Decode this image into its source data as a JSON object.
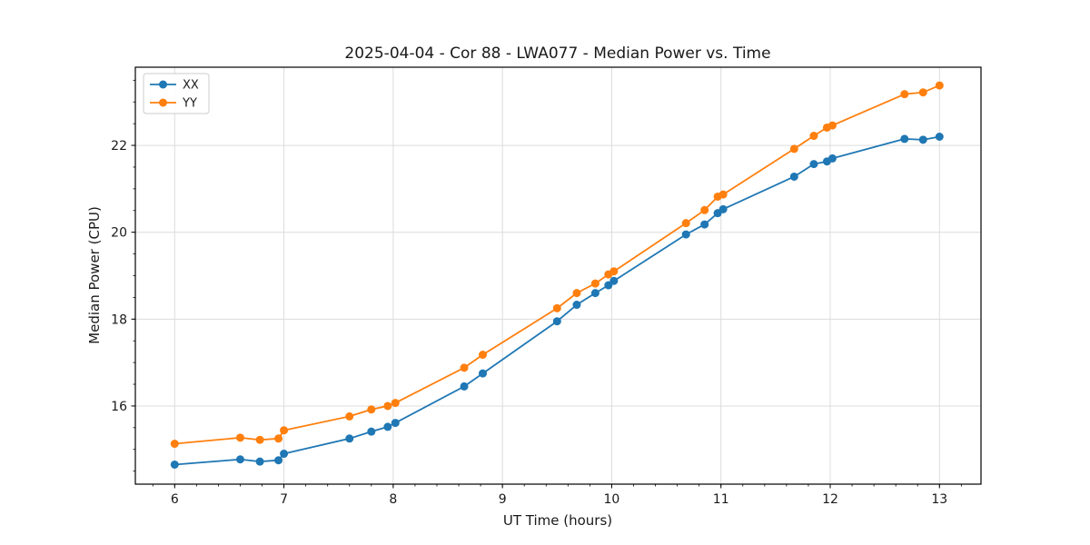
{
  "chart_data": {
    "type": "line",
    "title": "2025-04-04 - Cor 88 - LWA077 - Median Power vs. Time",
    "xlabel": "UT Time (hours)",
    "ylabel": "Median Power (CPU)",
    "xlim": [
      5.64,
      13.38
    ],
    "ylim": [
      14.2,
      23.8
    ],
    "x_ticks": [
      6,
      7,
      8,
      9,
      10,
      11,
      12,
      13
    ],
    "y_ticks": [
      16,
      18,
      20,
      22
    ],
    "x_minor_step": 0.2,
    "y_minor_step": 0.5,
    "grid": true,
    "grid_color": "#dcdcdc",
    "legend_position": "upper-left",
    "x": [
      6.0,
      6.6,
      6.78,
      6.95,
      7.0,
      7.6,
      7.8,
      7.95,
      8.02,
      8.65,
      8.82,
      9.5,
      9.68,
      9.85,
      9.97,
      10.02,
      10.68,
      10.85,
      10.97,
      11.02,
      11.67,
      11.85,
      11.97,
      12.02,
      12.68,
      12.85,
      13.0
    ],
    "series": [
      {
        "name": "XX",
        "color": "#1f77b4",
        "values": [
          14.65,
          14.77,
          14.72,
          14.75,
          14.9,
          15.25,
          15.41,
          15.52,
          15.61,
          16.45,
          16.75,
          17.95,
          18.33,
          18.6,
          18.78,
          18.88,
          19.95,
          20.18,
          20.44,
          20.53,
          21.28,
          21.57,
          21.63,
          21.7,
          22.15,
          22.13,
          22.2
        ]
      },
      {
        "name": "YY",
        "color": "#ff7f0e",
        "values": [
          15.13,
          15.27,
          15.22,
          15.25,
          15.44,
          15.76,
          15.92,
          16.0,
          16.07,
          16.88,
          17.18,
          18.25,
          18.6,
          18.82,
          19.03,
          19.1,
          20.21,
          20.51,
          20.82,
          20.87,
          21.92,
          22.22,
          22.41,
          22.46,
          23.18,
          23.22,
          23.38
        ]
      }
    ]
  }
}
